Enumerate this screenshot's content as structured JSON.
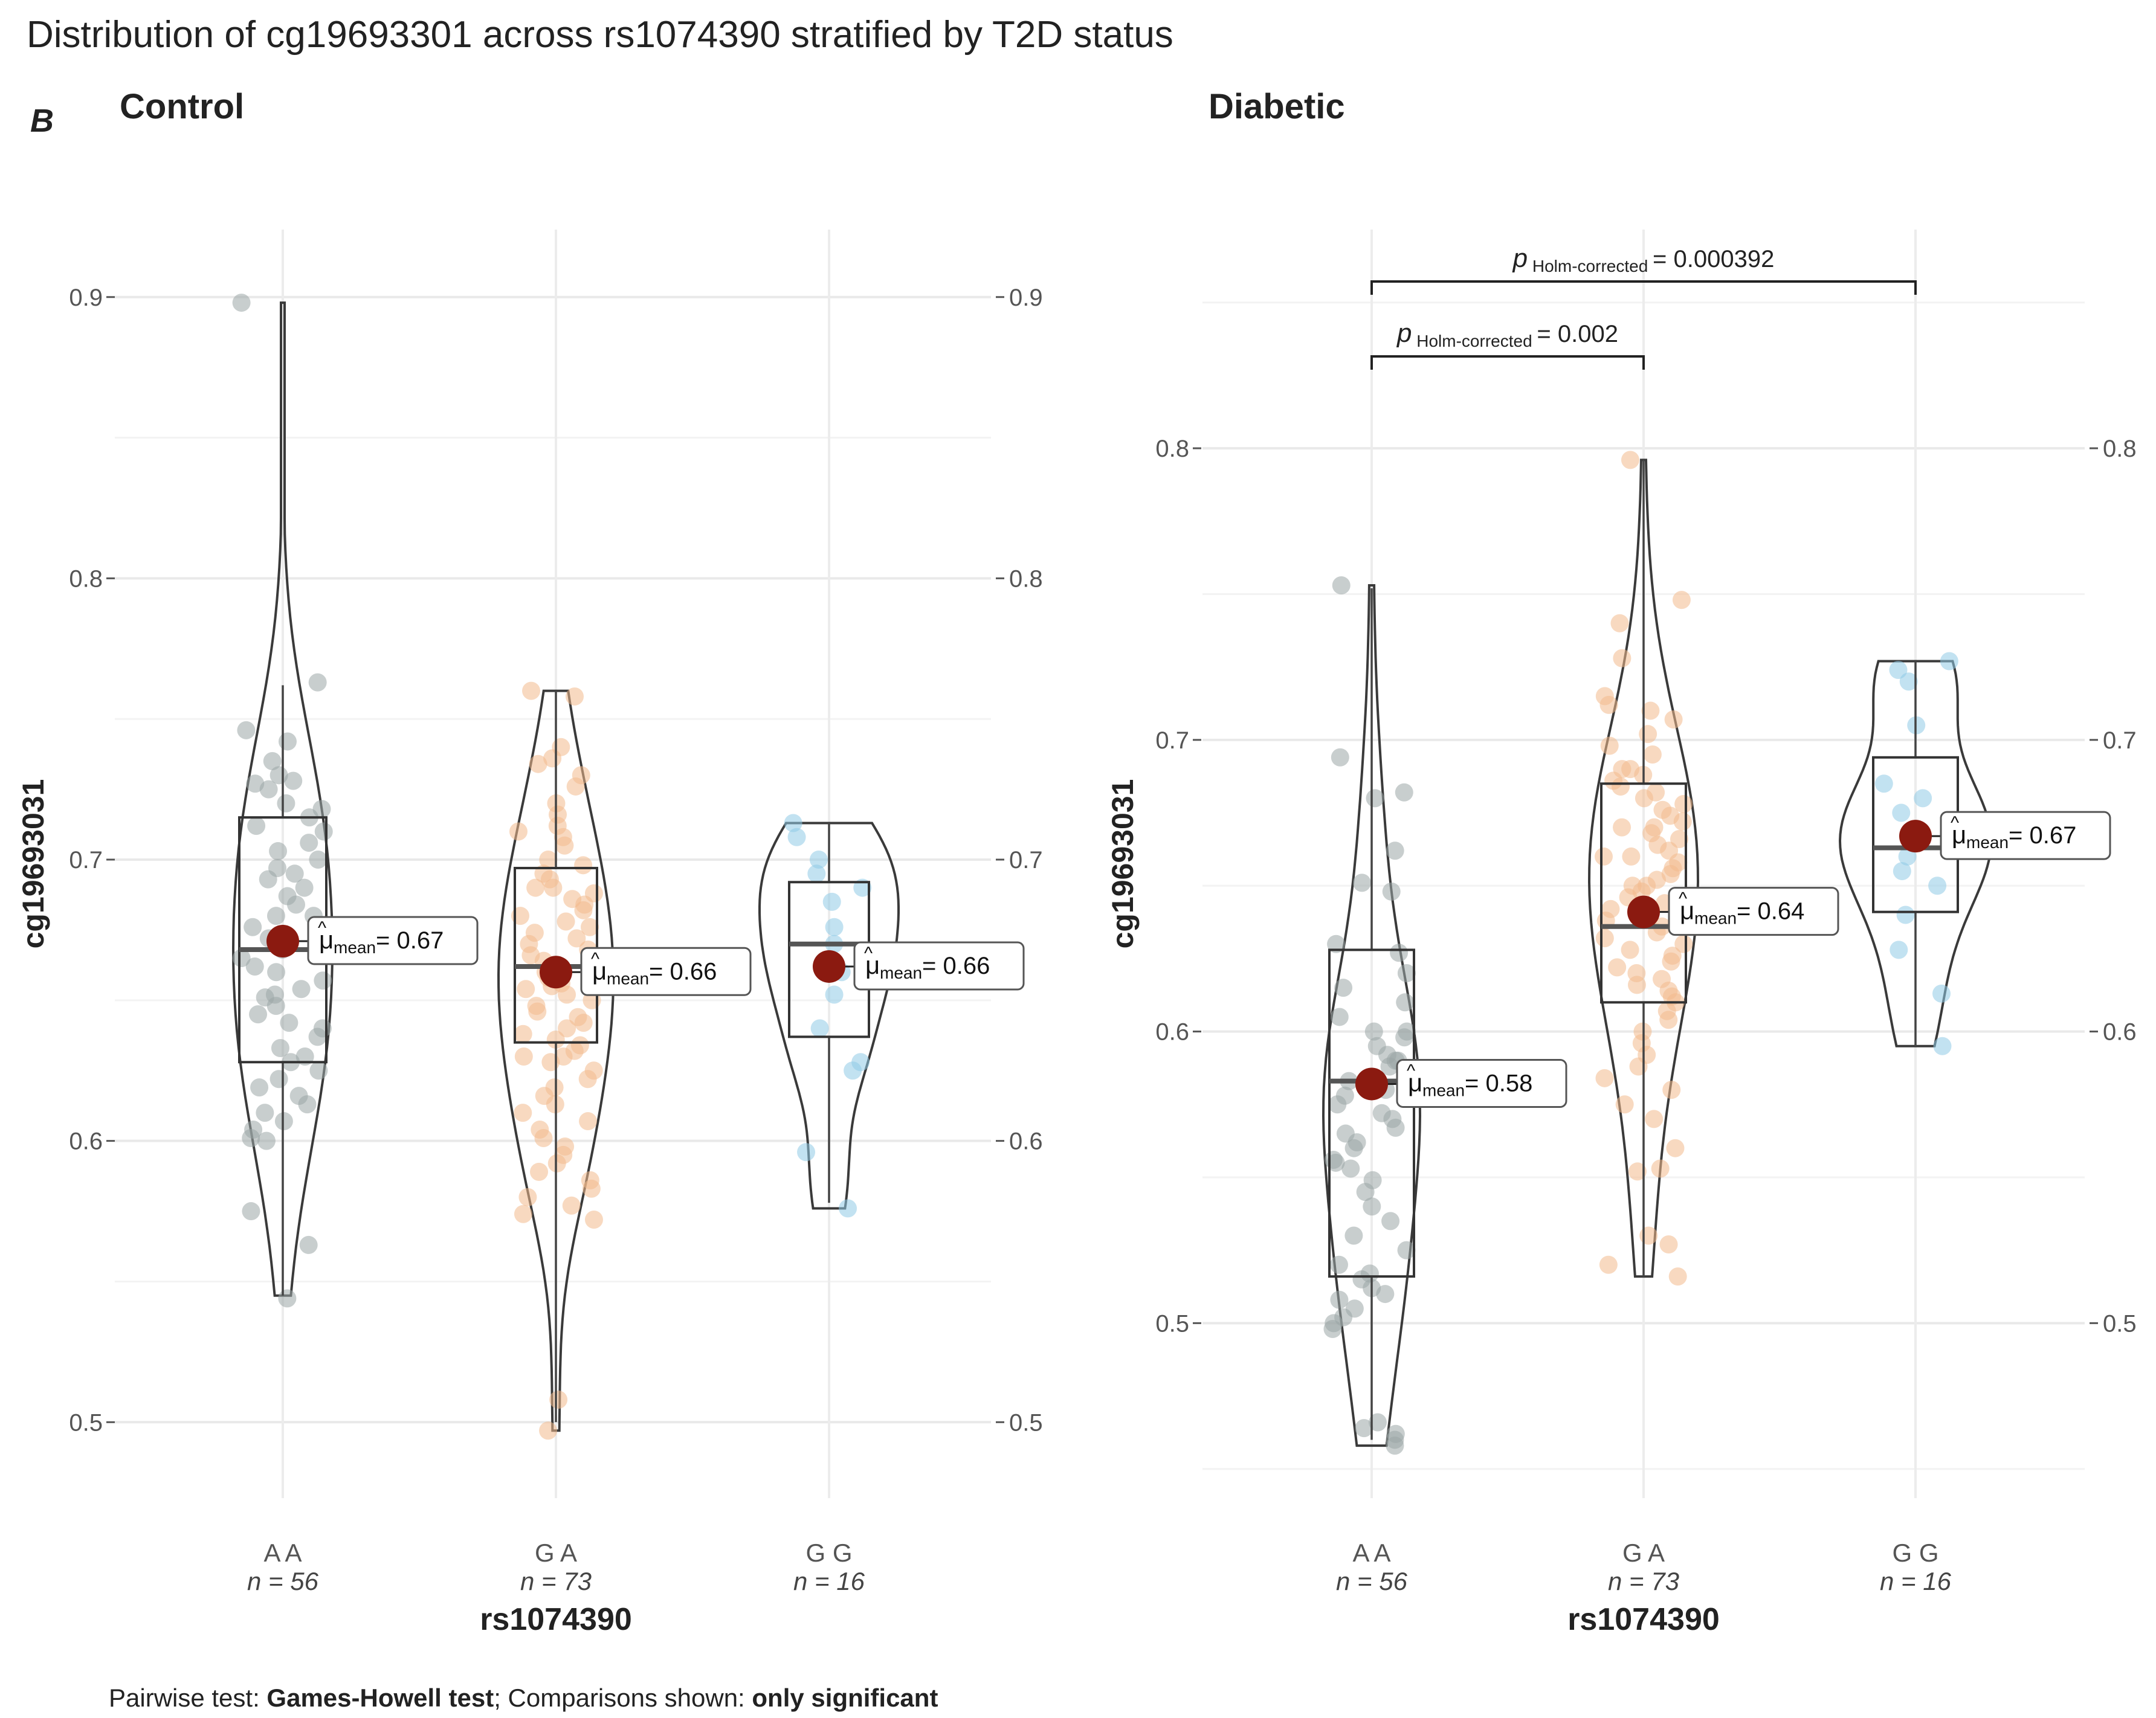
{
  "figure": {
    "title": "Distribution of cg19693301 across rs1074390 stratified by T2D status",
    "panel_tag": "B",
    "footer": {
      "prefix": "Pairwise test: ",
      "test": "Games-Howell test",
      "mid": "; Comparisons shown: ",
      "shown": "only significant"
    }
  },
  "colors": {
    "AA": "#9aa5a6",
    "GA": "#f2b98c",
    "GG": "#8fcbe6",
    "mean": "#8b1a10",
    "outline": "#333333",
    "grid": "#ececec"
  },
  "chart_data": [
    {
      "type": "violin",
      "panel": "Control",
      "title": "Control",
      "xlabel": "rs1074390",
      "ylabel": "cg19693031",
      "ylim": [
        0.473,
        0.924
      ],
      "yticks": [
        0.5,
        0.6,
        0.7,
        0.8,
        0.9
      ],
      "ytick_labels": [
        "0.5",
        "0.6",
        "0.7",
        "0.8",
        "0.9"
      ],
      "groups": [
        {
          "label": "A A",
          "key": "AA",
          "n_label": "n = 56",
          "min": 0.545,
          "q1": 0.628,
          "median": 0.668,
          "q3": 0.715,
          "max": 0.762,
          "mean": 0.671,
          "mean_label": "= 0.67",
          "vmin": 0.545,
          "vmax": 0.898,
          "points": [
            0.898,
            0.763,
            0.746,
            0.742,
            0.735,
            0.73,
            0.728,
            0.727,
            0.725,
            0.72,
            0.718,
            0.715,
            0.712,
            0.71,
            0.706,
            0.703,
            0.7,
            0.697,
            0.695,
            0.693,
            0.69,
            0.687,
            0.684,
            0.68,
            0.676,
            0.672,
            0.668,
            0.665,
            0.662,
            0.66,
            0.657,
            0.654,
            0.651,
            0.648,
            0.645,
            0.642,
            0.64,
            0.637,
            0.633,
            0.63,
            0.628,
            0.625,
            0.622,
            0.619,
            0.616,
            0.613,
            0.61,
            0.607,
            0.604,
            0.601,
            0.6,
            0.575,
            0.563,
            0.544,
            0.652,
            0.68
          ]
        },
        {
          "label": "G A",
          "key": "GA",
          "n_label": "n = 73",
          "min": 0.5,
          "q1": 0.635,
          "median": 0.662,
          "q3": 0.697,
          "max": 0.76,
          "mean": 0.66,
          "mean_label": "= 0.66",
          "vmin": 0.497,
          "vmax": 0.76,
          "points": [
            0.76,
            0.758,
            0.74,
            0.736,
            0.734,
            0.73,
            0.726,
            0.72,
            0.716,
            0.712,
            0.71,
            0.708,
            0.705,
            0.7,
            0.698,
            0.695,
            0.693,
            0.69,
            0.688,
            0.686,
            0.684,
            0.682,
            0.68,
            0.678,
            0.676,
            0.674,
            0.672,
            0.67,
            0.668,
            0.666,
            0.664,
            0.662,
            0.66,
            0.658,
            0.656,
            0.654,
            0.652,
            0.65,
            0.648,
            0.646,
            0.644,
            0.642,
            0.64,
            0.638,
            0.636,
            0.634,
            0.632,
            0.63,
            0.628,
            0.625,
            0.622,
            0.619,
            0.616,
            0.613,
            0.61,
            0.607,
            0.604,
            0.601,
            0.598,
            0.595,
            0.592,
            0.589,
            0.586,
            0.583,
            0.58,
            0.577,
            0.574,
            0.572,
            0.508,
            0.497,
            0.63,
            0.655,
            0.69
          ]
        },
        {
          "label": "G G",
          "key": "GG",
          "n_label": "n = 16",
          "min": 0.578,
          "q1": 0.637,
          "median": 0.67,
          "q3": 0.692,
          "max": 0.713,
          "mean": 0.662,
          "mean_label": "= 0.66",
          "vmin": 0.576,
          "vmax": 0.713,
          "points": [
            0.713,
            0.708,
            0.7,
            0.695,
            0.69,
            0.685,
            0.676,
            0.67,
            0.662,
            0.652,
            0.64,
            0.628,
            0.625,
            0.596,
            0.576,
            0.66
          ]
        }
      ],
      "comparisons": []
    },
    {
      "type": "violin",
      "panel": "Diabetic",
      "title": "Diabetic",
      "xlabel": "rs1074390",
      "ylabel": "cg19693031",
      "ylim": [
        0.44,
        0.875
      ],
      "yticks": [
        0.5,
        0.6,
        0.7,
        0.8
      ],
      "ytick_labels": [
        "0.5",
        "0.6",
        "0.7",
        "0.8"
      ],
      "groups": [
        {
          "label": "A A",
          "key": "AA",
          "n_label": "n = 56",
          "min": 0.46,
          "q1": 0.516,
          "median": 0.583,
          "q3": 0.628,
          "max": 0.752,
          "mean": 0.582,
          "mean_label": "= 0.58",
          "vmin": 0.458,
          "vmax": 0.753,
          "points": [
            0.753,
            0.694,
            0.682,
            0.68,
            0.662,
            0.651,
            0.648,
            0.63,
            0.627,
            0.62,
            0.615,
            0.61,
            0.605,
            0.6,
            0.598,
            0.595,
            0.592,
            0.59,
            0.588,
            0.585,
            0.583,
            0.58,
            0.578,
            0.575,
            0.572,
            0.57,
            0.567,
            0.565,
            0.562,
            0.56,
            0.556,
            0.553,
            0.549,
            0.545,
            0.54,
            0.535,
            0.53,
            0.525,
            0.52,
            0.517,
            0.515,
            0.512,
            0.51,
            0.508,
            0.505,
            0.502,
            0.5,
            0.498,
            0.466,
            0.464,
            0.462,
            0.46,
            0.458,
            0.555,
            0.59,
            0.6
          ]
        },
        {
          "label": "G A",
          "key": "GA",
          "n_label": "n = 73",
          "min": 0.516,
          "q1": 0.61,
          "median": 0.636,
          "q3": 0.685,
          "max": 0.796,
          "mean": 0.641,
          "mean_label": "= 0.64",
          "vmin": 0.516,
          "vmax": 0.796,
          "points": [
            0.796,
            0.748,
            0.74,
            0.728,
            0.715,
            0.712,
            0.71,
            0.707,
            0.702,
            0.698,
            0.695,
            0.69,
            0.688,
            0.686,
            0.684,
            0.682,
            0.68,
            0.678,
            0.676,
            0.674,
            0.672,
            0.67,
            0.668,
            0.666,
            0.664,
            0.662,
            0.66,
            0.658,
            0.656,
            0.654,
            0.652,
            0.65,
            0.648,
            0.646,
            0.644,
            0.642,
            0.64,
            0.638,
            0.636,
            0.634,
            0.632,
            0.63,
            0.628,
            0.626,
            0.624,
            0.622,
            0.62,
            0.618,
            0.616,
            0.614,
            0.612,
            0.61,
            0.607,
            0.604,
            0.6,
            0.596,
            0.592,
            0.588,
            0.584,
            0.58,
            0.575,
            0.57,
            0.56,
            0.553,
            0.552,
            0.53,
            0.527,
            0.52,
            0.516,
            0.65,
            0.66,
            0.67,
            0.69
          ]
        },
        {
          "label": "G G",
          "key": "GG",
          "n_label": "n = 16",
          "min": 0.595,
          "q1": 0.641,
          "median": 0.663,
          "q3": 0.694,
          "max": 0.727,
          "mean": 0.667,
          "mean_label": "= 0.67",
          "vmin": 0.595,
          "vmax": 0.727,
          "points": [
            0.727,
            0.724,
            0.72,
            0.705,
            0.685,
            0.68,
            0.675,
            0.665,
            0.66,
            0.655,
            0.65,
            0.628,
            0.613,
            0.595,
            0.67,
            0.64
          ]
        }
      ],
      "comparisons": [
        {
          "from": "A A",
          "to": "G A",
          "label_p": "p",
          "label_sub": "Holm-corrected",
          "label_value": "= 0.002"
        },
        {
          "from": "A A",
          "to": "G G",
          "label_p": "p",
          "label_sub": "Holm-corrected",
          "label_value": "= 0.000392"
        }
      ]
    }
  ]
}
